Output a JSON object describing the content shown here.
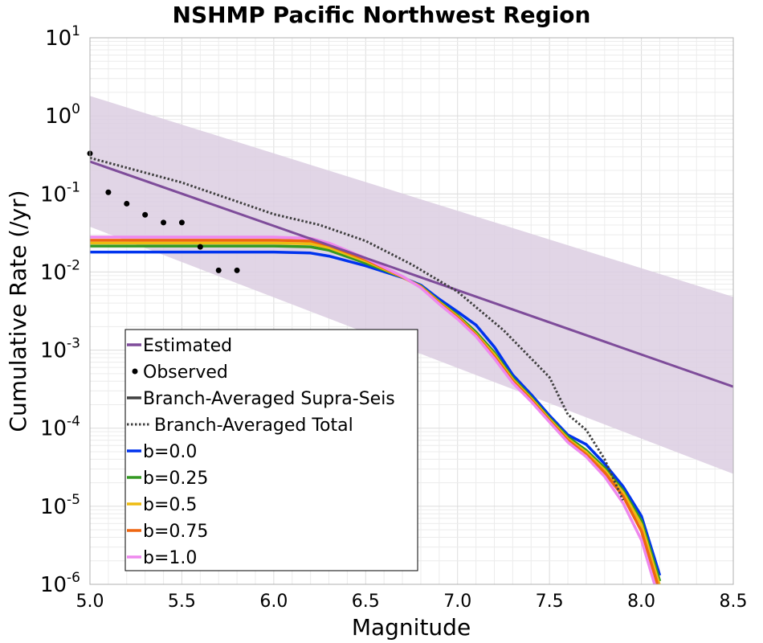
{
  "chart_data": {
    "type": "line",
    "title": "NSHMP Pacific Northwest Region",
    "xlabel": "Magnitude",
    "ylabel": "Cumulative Rate (/yr)",
    "xlim": [
      5.0,
      8.5
    ],
    "ylim": [
      1e-06,
      10
    ],
    "yscale": "log",
    "grid": true,
    "legend_placement": "lower-left",
    "x_ticks": [
      "5.0",
      "5.5",
      "6.0",
      "6.5",
      "7.0",
      "7.5",
      "8.0",
      "8.5"
    ],
    "x_tick_values": [
      5.0,
      5.5,
      6.0,
      6.5,
      7.0,
      7.5,
      8.0,
      8.5
    ],
    "y_ticks": [
      {
        "base": "10",
        "exp": "-6",
        "value": 1e-06
      },
      {
        "base": "10",
        "exp": "-5",
        "value": 1e-05
      },
      {
        "base": "10",
        "exp": "-4",
        "value": 0.0001
      },
      {
        "base": "10",
        "exp": "-3",
        "value": 0.001
      },
      {
        "base": "10",
        "exp": "-2",
        "value": 0.01
      },
      {
        "base": "10",
        "exp": "-1",
        "value": 0.1
      },
      {
        "base": "10",
        "exp": "0",
        "value": 1
      },
      {
        "base": "10",
        "exp": "1",
        "value": 10
      }
    ],
    "uncertainty_band": {
      "color": "#DCCEE2",
      "upper": [
        [
          5.0,
          1.8
        ],
        [
          8.5,
          0.0048
        ]
      ],
      "lower": [
        [
          5.0,
          0.038
        ],
        [
          8.5,
          2.6e-05
        ]
      ]
    },
    "series": [
      {
        "name": "Estimated",
        "style": "line",
        "color": "#7E4C9A",
        "points": [
          [
            5.0,
            0.26
          ],
          [
            8.5,
            0.00034
          ]
        ]
      },
      {
        "name": "Observed",
        "style": "marker",
        "color": "#000000",
        "points": [
          [
            5.0,
            0.33
          ],
          [
            5.1,
            0.105
          ],
          [
            5.2,
            0.075
          ],
          [
            5.3,
            0.054
          ],
          [
            5.4,
            0.043
          ],
          [
            5.5,
            0.043
          ],
          [
            5.6,
            0.021
          ],
          [
            5.7,
            0.0105
          ],
          [
            5.8,
            0.0105
          ]
        ]
      },
      {
        "name": "Branch-Averaged Supra-Seis",
        "style": "legend-only",
        "color": "#404040",
        "points": []
      },
      {
        "name": "Branch-Averaged Total",
        "style": "dotted",
        "color": "#404040",
        "points": [
          [
            5.0,
            0.29
          ],
          [
            5.5,
            0.14
          ],
          [
            6.0,
            0.055
          ],
          [
            6.25,
            0.04
          ],
          [
            6.5,
            0.025
          ],
          [
            6.75,
            0.0125
          ],
          [
            7.0,
            0.0056
          ],
          [
            7.25,
            0.0018
          ],
          [
            7.5,
            0.00045
          ],
          [
            7.6,
            0.00015
          ],
          [
            7.7,
            9.5e-05
          ],
          [
            7.8,
            4e-05
          ],
          [
            7.9,
            1.2e-05
          ]
        ]
      },
      {
        "name": "b=0.0",
        "style": "line",
        "color": "#0033EE",
        "points": [
          [
            5.0,
            0.018
          ],
          [
            6.0,
            0.018
          ],
          [
            6.2,
            0.0175
          ],
          [
            6.3,
            0.016
          ],
          [
            6.5,
            0.012
          ],
          [
            6.7,
            0.0085
          ],
          [
            6.8,
            0.0068
          ],
          [
            6.9,
            0.0045
          ],
          [
            7.0,
            0.0031
          ],
          [
            7.1,
            0.0021
          ],
          [
            7.2,
            0.0011
          ],
          [
            7.3,
            0.00048
          ],
          [
            7.4,
            0.00027
          ],
          [
            7.5,
            0.000145
          ],
          [
            7.6,
            8.2e-05
          ],
          [
            7.7,
            6.2e-05
          ],
          [
            7.8,
            3.5e-05
          ],
          [
            7.9,
            1.8e-05
          ],
          [
            8.0,
            7.5e-06
          ],
          [
            8.1,
            1.3e-06
          ]
        ]
      },
      {
        "name": "b=0.25",
        "style": "line",
        "color": "#339922",
        "points": [
          [
            5.0,
            0.0215
          ],
          [
            6.0,
            0.0215
          ],
          [
            6.2,
            0.021
          ],
          [
            6.3,
            0.019
          ],
          [
            6.5,
            0.013
          ],
          [
            6.7,
            0.0086
          ],
          [
            6.8,
            0.0066
          ],
          [
            6.9,
            0.0042
          ],
          [
            7.0,
            0.0028
          ],
          [
            7.1,
            0.0017
          ],
          [
            7.2,
            0.00093
          ],
          [
            7.3,
            0.00044
          ],
          [
            7.4,
            0.00025
          ],
          [
            7.5,
            0.000135
          ],
          [
            7.6,
            7.7e-05
          ],
          [
            7.7,
            5.2e-05
          ],
          [
            7.8,
            3.1e-05
          ],
          [
            7.9,
            1.6e-05
          ],
          [
            8.0,
            6.5e-06
          ],
          [
            8.1,
            1.1e-06
          ]
        ]
      },
      {
        "name": "b=0.5",
        "style": "line",
        "color": "#EEBB11",
        "points": [
          [
            5.0,
            0.0235
          ],
          [
            6.0,
            0.0235
          ],
          [
            6.2,
            0.023
          ],
          [
            6.3,
            0.0205
          ],
          [
            6.5,
            0.0138
          ],
          [
            6.7,
            0.0086
          ],
          [
            6.8,
            0.0065
          ],
          [
            6.9,
            0.0041
          ],
          [
            7.0,
            0.0027
          ],
          [
            7.1,
            0.0016
          ],
          [
            7.2,
            0.00088
          ],
          [
            7.3,
            0.00042
          ],
          [
            7.4,
            0.00024
          ],
          [
            7.5,
            0.00013
          ],
          [
            7.6,
            7.3e-05
          ],
          [
            7.7,
            4.9e-05
          ],
          [
            7.8,
            2.9e-05
          ],
          [
            7.9,
            1.5e-05
          ],
          [
            8.0,
            5.8e-06
          ],
          [
            8.1,
            9.5e-07
          ]
        ]
      },
      {
        "name": "b=0.75",
        "style": "line",
        "color": "#EE6611",
        "points": [
          [
            5.0,
            0.0255
          ],
          [
            6.0,
            0.0255
          ],
          [
            6.2,
            0.025
          ],
          [
            6.3,
            0.022
          ],
          [
            6.5,
            0.0145
          ],
          [
            6.7,
            0.0087
          ],
          [
            6.8,
            0.0064
          ],
          [
            6.9,
            0.004
          ],
          [
            7.0,
            0.0026
          ],
          [
            7.1,
            0.00155
          ],
          [
            7.2,
            0.00082
          ],
          [
            7.3,
            0.0004
          ],
          [
            7.4,
            0.00023
          ],
          [
            7.5,
            0.000125
          ],
          [
            7.6,
            7e-05
          ],
          [
            7.7,
            4.6e-05
          ],
          [
            7.8,
            2.7e-05
          ],
          [
            7.9,
            1.35e-05
          ],
          [
            8.0,
            4.8e-06
          ],
          [
            8.1,
            8e-07
          ]
        ]
      },
      {
        "name": "b=1.0",
        "style": "line",
        "color": "#EE88EE",
        "points": [
          [
            5.0,
            0.028
          ],
          [
            6.0,
            0.028
          ],
          [
            6.2,
            0.027
          ],
          [
            6.3,
            0.0235
          ],
          [
            6.5,
            0.015
          ],
          [
            6.7,
            0.0088
          ],
          [
            6.8,
            0.0063
          ],
          [
            6.9,
            0.0039
          ],
          [
            7.0,
            0.0025
          ],
          [
            7.1,
            0.0015
          ],
          [
            7.2,
            0.00078
          ],
          [
            7.3,
            0.00038
          ],
          [
            7.4,
            0.00022
          ],
          [
            7.5,
            0.00012
          ],
          [
            7.6,
            6.6e-05
          ],
          [
            7.7,
            4.3e-05
          ],
          [
            7.8,
            2.4e-05
          ],
          [
            7.9,
            1.1e-05
          ],
          [
            8.0,
            3.7e-06
          ],
          [
            8.1,
            6e-07
          ]
        ]
      }
    ]
  }
}
